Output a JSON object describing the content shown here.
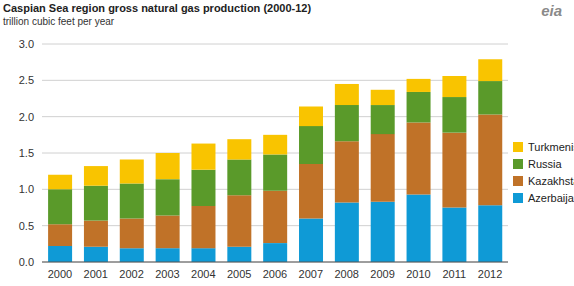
{
  "chart_data": {
    "type": "bar",
    "title": "Caspian Sea region gross natural gas production (2000-12)",
    "subtitle": "trillion cubic feet per year",
    "annotations": [
      "eia"
    ],
    "categories": [
      "2000",
      "2001",
      "2002",
      "2003",
      "2004",
      "2005",
      "2006",
      "2007",
      "2008",
      "2009",
      "2010",
      "2011",
      "2012"
    ],
    "series": [
      {
        "name": "Azerbaijan",
        "color": "#0f9ad6",
        "values": [
          0.22,
          0.21,
          0.19,
          0.19,
          0.19,
          0.21,
          0.26,
          0.6,
          0.82,
          0.83,
          0.93,
          0.75,
          0.78
        ]
      },
      {
        "name": "Kazakhstan",
        "color": "#c07228",
        "values": [
          0.3,
          0.36,
          0.41,
          0.45,
          0.58,
          0.71,
          0.72,
          0.75,
          0.84,
          0.93,
          0.99,
          1.03,
          1.25
        ]
      },
      {
        "name": "Russia",
        "color": "#5a9a2a",
        "values": [
          0.48,
          0.48,
          0.48,
          0.5,
          0.5,
          0.49,
          0.5,
          0.52,
          0.5,
          0.4,
          0.42,
          0.49,
          0.46
        ]
      },
      {
        "name": "Turkmenistan",
        "color": "#f9c400",
        "values": [
          0.2,
          0.27,
          0.33,
          0.36,
          0.36,
          0.28,
          0.27,
          0.27,
          0.29,
          0.21,
          0.18,
          0.29,
          0.3
        ]
      }
    ],
    "ylim": [
      0,
      3
    ],
    "yticks": [
      {
        "value": 0,
        "label": "0.0"
      },
      0.5,
      {
        "value": 1,
        "label": "1.0"
      },
      1.5,
      {
        "value": 2,
        "label": "2.0"
      },
      2.5,
      {
        "value": 3,
        "label": "3.0"
      }
    ],
    "stacked": true,
    "grid": true,
    "legend": "right"
  }
}
